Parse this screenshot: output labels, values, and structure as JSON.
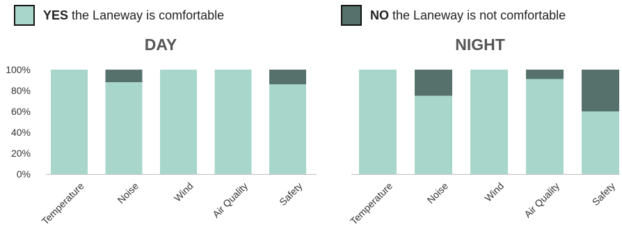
{
  "legend": {
    "yes": {
      "strong": "YES",
      "text": " the Laneway is comfortable",
      "color": "#a8d6cb"
    },
    "no": {
      "strong": "NO",
      "text": " the Laneway is not comfortable",
      "color": "#56716b"
    }
  },
  "chart_data": [
    {
      "type": "bar",
      "stacked": true,
      "title": "DAY",
      "categories": [
        "Temperature",
        "Noise",
        "Wind",
        "Air Quality",
        "Safety"
      ],
      "series": [
        {
          "name": "YES the Laneway is comfortable",
          "values": [
            100,
            88,
            100,
            100,
            86
          ]
        },
        {
          "name": "NO the Laneway is not comfortable",
          "values": [
            0,
            12,
            0,
            0,
            14
          ]
        }
      ],
      "yticks": [
        "0%",
        "20%",
        "40%",
        "60%",
        "80%",
        "100%"
      ],
      "ylim": [
        0,
        100
      ],
      "grid": false
    },
    {
      "type": "bar",
      "stacked": true,
      "title": "NIGHT",
      "categories": [
        "Temperature",
        "Noise",
        "Wind",
        "Air Quality",
        "Safety"
      ],
      "series": [
        {
          "name": "YES the Laneway is comfortable",
          "values": [
            100,
            75,
            100,
            91,
            60
          ]
        },
        {
          "name": "NO the Laneway is not comfortable",
          "values": [
            0,
            25,
            0,
            9,
            40
          ]
        }
      ],
      "yticks": [
        "0%",
        "20%",
        "40%",
        "60%",
        "80%",
        "100%"
      ],
      "ylim": [
        0,
        100
      ],
      "grid": false
    }
  ]
}
